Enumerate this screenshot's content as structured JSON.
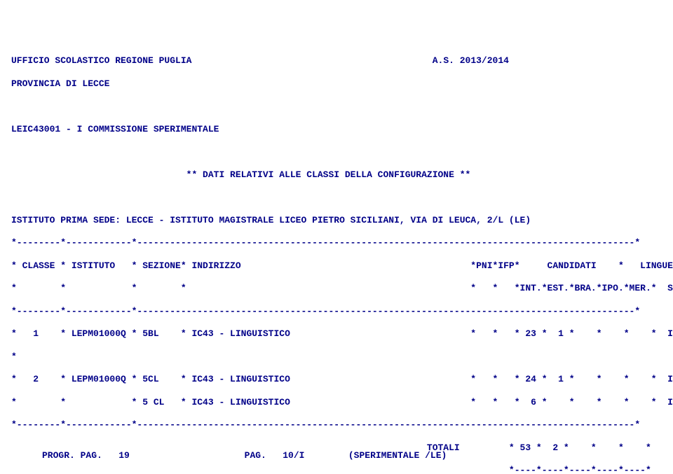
{
  "header": {
    "left1": "UFFICIO SCOLASTICO REGIONE PUGLIA",
    "right1": "A.S. 2013/2014",
    "left2": "PROVINCIA DI LECCE",
    "left3": "LEIC43001 - I COMMISSIONE SPERIMENTALE",
    "center1": "** DATI RELATIVI ALLE CLASSI DELLA CONFIGURAZIONE **",
    "left4": "ISTITUTO PRIMA SEDE: LECCE - ISTITUTO MAGISTRALE LICEO PIETRO SICILIANI, VIA DI LEUCA, 2/L (LE)"
  },
  "table": {
    "sep": "*--------*------------*-------------------------------------------------------------------------------------------*",
    "hdr1": "* CLASSE * ISTITUTO   * SEZIONE* INDIRIZZO                                          *PNI*IFP*     CANDIDATI    *   LINGUE   *",
    "hdr2": "*        *            *        *                                                    *   *   *INT.*EST.*BRA.*IPO.*MER.*  STRANIERE *",
    "row1": "*   1    * LEPM01000Q * 5BL    * IC43 - LINGUISTICO                                 *   *   * 23 *  1 *    *    *    *  I/ F/ T   *",
    "spacer": "*                                                                                                                               *",
    "row2a": "*   2    * LEPM01000Q * 5CL    * IC43 - LINGUISTICO                                 *   *   * 24 *  1 *    *    *    *  I/ F/ S   *",
    "row2b": "*        *            * 5 CL   * IC43 - LINGUISTICO                                 *   *   *  6 *    *    *    *    *  I/ S/ T   *",
    "totali": "                                                                            TOTALI         * 53 *  2 *    *    *    *",
    "totsep": "                                                                                           *----*----*----*----*----*"
  },
  "footer": {
    "text": "PROGR. PAG.   19                     PAG.   10/I        (SPERIMENTALE /LE)"
  }
}
